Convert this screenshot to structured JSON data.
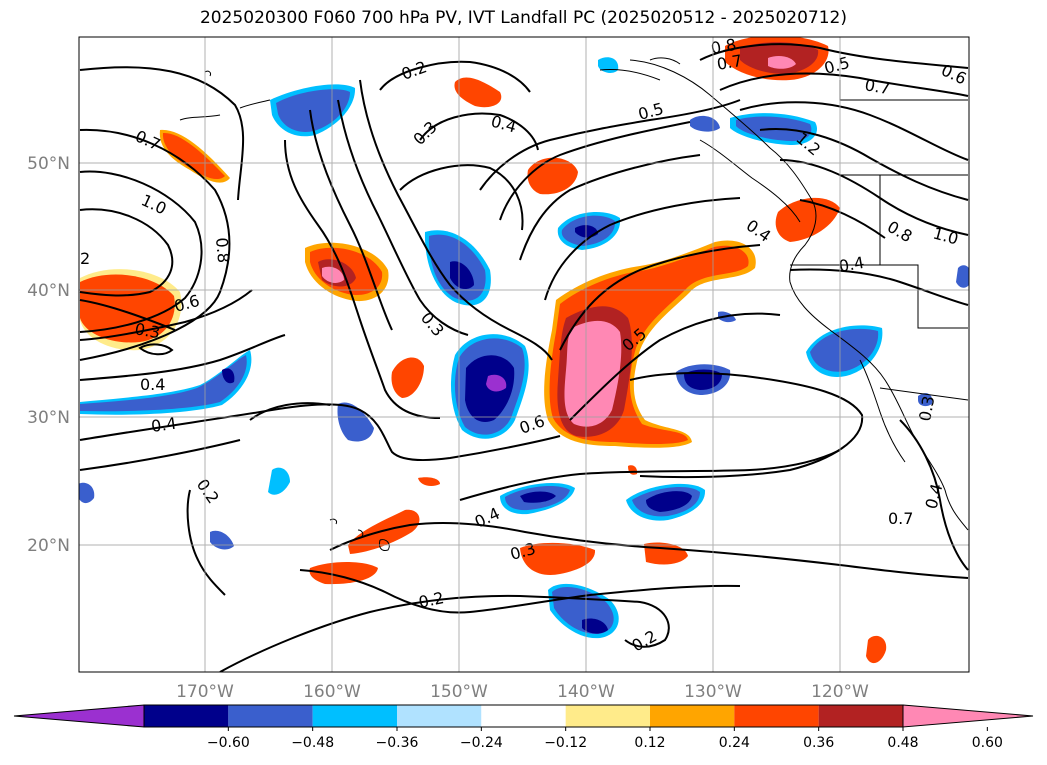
{
  "title": "2025020300 F060 700 hPa PV, IVT Landfall PC (2025020512 - 2025020712)",
  "lat_labels": [
    "50°N",
    "40°N",
    "30°N",
    "20°N"
  ],
  "lon_labels": [
    "170°W",
    "160°W",
    "150°W",
    "140°W",
    "130°W",
    "120°W"
  ],
  "colorbar": {
    "colors": [
      "#9b30d0",
      "#00008b",
      "#3a5fcd",
      "#00bfff",
      "#b0e2ff",
      "#ffffff",
      "#ffeb8a",
      "#ffa500",
      "#ff4500",
      "#b22222",
      "#ff88b4"
    ],
    "ticks": [
      "−0.60",
      "−0.48",
      "−0.36",
      "−0.24",
      "−0.12",
      "0.12",
      "0.24",
      "0.36",
      "0.48",
      "0.60"
    ]
  },
  "contour_labels": [
    {
      "text": "0.8"
    },
    {
      "text": "0.7"
    },
    {
      "text": "0.5"
    },
    {
      "text": "0.6"
    },
    {
      "text": "0.2"
    },
    {
      "text": "0.7"
    },
    {
      "text": "0.4"
    },
    {
      "text": "0.5"
    },
    {
      "text": "0.3"
    },
    {
      "text": "0.7"
    },
    {
      "text": "1.2"
    },
    {
      "text": "1.0"
    },
    {
      "text": "0.4"
    },
    {
      "text": "0.8"
    },
    {
      "text": "1.0"
    },
    {
      "text": "2"
    },
    {
      "text": "0.8"
    },
    {
      "text": "0.4"
    },
    {
      "text": "0.6"
    },
    {
      "text": "0.3"
    },
    {
      "text": "0.3"
    },
    {
      "text": "0.5"
    },
    {
      "text": "0.4"
    },
    {
      "text": "0.4"
    },
    {
      "text": "0.6"
    },
    {
      "text": "0.3"
    },
    {
      "text": "0.7"
    },
    {
      "text": "0.2"
    },
    {
      "text": "0.4"
    },
    {
      "text": "0.3"
    },
    {
      "text": "0.4"
    },
    {
      "text": "0.2"
    },
    {
      "text": "0.2"
    }
  ]
}
